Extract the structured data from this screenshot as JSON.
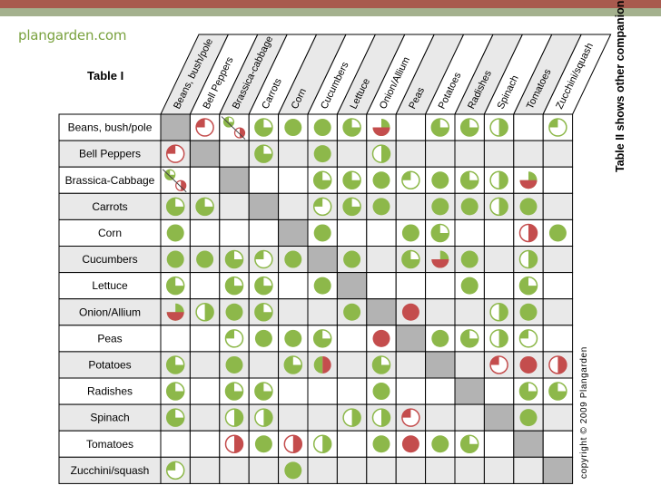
{
  "logo": {
    "text": "plangarden.com"
  },
  "table_title": "Table I",
  "side_note": "Table II shows other companions",
  "copyright": "copyright © 2009 Plangarden",
  "colors": {
    "green": "#8db84a",
    "red": "#c44d4d",
    "gray": "#b3b3b3",
    "header_fill": "#e9e9e9"
  },
  "plants": [
    "Beans, bush/pole",
    "Bell Peppers",
    "Brassica-cabbage",
    "Carrots",
    "Corn",
    "Cucumbers",
    "Lettuce",
    "Onion/Allium",
    "Peas",
    "Potatoes",
    "Radishes",
    "Spinach",
    "Tomatoes",
    "Zucchini/squash"
  ],
  "row_labels": [
    "Beans, bush/pole",
    "Bell Peppers",
    "Brassica-Cabbage",
    "Carrots",
    "Corn",
    "Cucumbers",
    "Lettuce",
    "Onion/Allium",
    "Peas",
    "Potatoes",
    "Radishes",
    "Spinach",
    "Tomatoes",
    "Zucchini/squash"
  ],
  "legend_note": "Cell symbols: G = green full, g3 = green 3/4, gh = green half, gq = green 1/4, R = red full, rq = red 1/4, rh = red half, rg = green/red split, gr = red/green split, gp = green-over-red, X = self (gray)",
  "matrix": [
    [
      "X",
      "rq",
      "gp",
      "g3",
      "G",
      "G",
      "g3",
      "rg",
      "",
      "g3",
      "g3",
      "gh",
      "",
      "gq"
    ],
    [
      "rq",
      "X",
      "",
      "g3",
      "",
      "G",
      "",
      "gh",
      "",
      "",
      "",
      "",
      "",
      ""
    ],
    [
      "gp",
      "",
      "X",
      "",
      "",
      "g3",
      "g3",
      "G",
      "gq",
      "G",
      "g3",
      "gh",
      "rg",
      ""
    ],
    [
      "g3",
      "g3",
      "",
      "X",
      "",
      "gq",
      "g3",
      "G",
      "",
      "G",
      "G",
      "gh",
      "G",
      ""
    ],
    [
      "G",
      "",
      "",
      "",
      "X",
      "G",
      "",
      "",
      "G",
      "g3",
      "",
      "",
      "rh",
      "G"
    ],
    [
      "G",
      "G",
      "g3",
      "gq",
      "G",
      "X",
      "G",
      "",
      "g3",
      "rg",
      "G",
      "",
      "gh",
      ""
    ],
    [
      "g3",
      "",
      "g3",
      "g3",
      "",
      "G",
      "X",
      "",
      "",
      "",
      "G",
      "",
      "g3",
      ""
    ],
    [
      "rg",
      "gh",
      "G",
      "g3",
      "",
      "",
      "G",
      "X",
      "R",
      "",
      "",
      "gh",
      "G",
      ""
    ],
    [
      "",
      "",
      "gq",
      "G",
      "G",
      "g3",
      "",
      "R",
      "X",
      "G",
      "g3",
      "gh",
      "gq",
      ""
    ],
    [
      "g3",
      "",
      "G",
      "",
      "g3",
      "gr",
      "",
      "g3",
      "",
      "X",
      "",
      "rq",
      "R",
      "rh"
    ],
    [
      "g3",
      "",
      "g3",
      "g3",
      "",
      "",
      "",
      "G",
      "",
      "",
      "X",
      "",
      "g3",
      "g3"
    ],
    [
      "g3",
      "",
      "gh",
      "gh",
      "",
      "",
      "gh",
      "gh",
      "rq",
      "",
      "",
      "X",
      "G",
      ""
    ],
    [
      "",
      "",
      "rh",
      "G",
      "rh",
      "gh",
      "",
      "G",
      "R",
      "G",
      "g3",
      "",
      "X",
      ""
    ],
    [
      "gq",
      "",
      "",
      "",
      "G",
      "",
      "",
      "",
      "",
      "",
      "",
      "",
      "",
      "X"
    ]
  ]
}
